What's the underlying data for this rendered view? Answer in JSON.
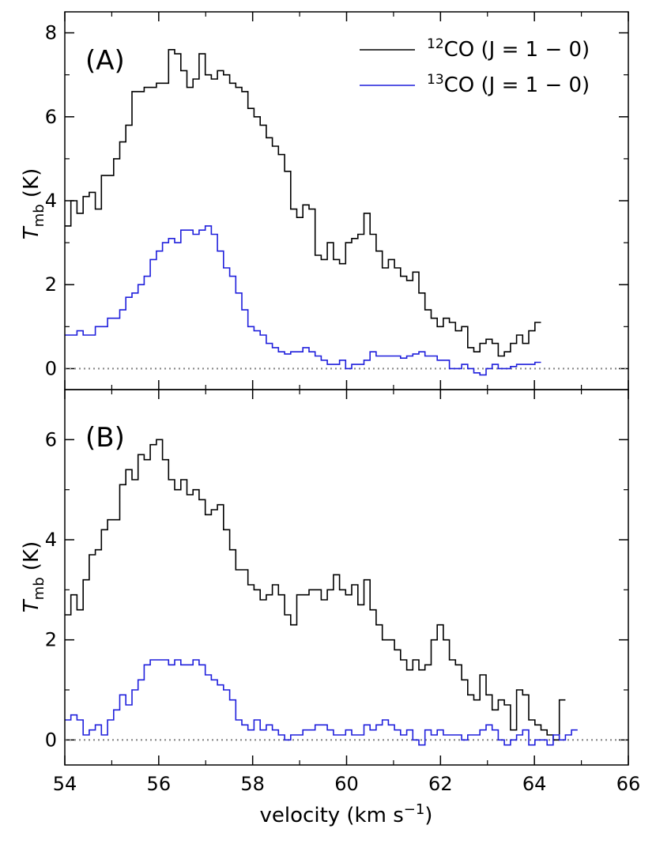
{
  "chart_data": [
    {
      "type": "line",
      "panel_label": "(A)",
      "ylabel": "Tmb (K)",
      "ylabel_main": "T",
      "ylabel_sub": "mb",
      "ylabel_unit": " (K)",
      "xlim": [
        54,
        66
      ],
      "ylim": [
        -0.5,
        8.5
      ],
      "yticks": [
        0,
        2,
        4,
        6,
        8
      ],
      "minor_yticks": [
        1,
        3,
        5,
        7
      ],
      "zero_line": true,
      "legend": {
        "placement": "top-right",
        "entries": [
          {
            "sup": "12",
            "text": "CO (J = 1 − 0)",
            "color": "#000000"
          },
          {
            "sup": "13",
            "text": "CO (J = 1 − 0)",
            "color": "#1f1fdc"
          }
        ]
      },
      "step": 0.13,
      "series": [
        {
          "color": "#000000",
          "values": [
            3.4,
            4.0,
            3.7,
            4.1,
            4.2,
            3.8,
            4.6,
            4.6,
            5.0,
            5.4,
            5.8,
            6.6,
            6.6,
            6.7,
            6.7,
            6.8,
            6.8,
            7.6,
            7.5,
            7.1,
            6.7,
            6.9,
            7.5,
            7.0,
            6.9,
            7.1,
            7.0,
            6.8,
            6.7,
            6.6,
            6.2,
            6.0,
            5.8,
            5.5,
            5.3,
            5.1,
            4.7,
            3.8,
            3.6,
            3.9,
            3.8,
            2.7,
            2.6,
            3.0,
            2.6,
            2.5,
            3.0,
            3.1,
            3.2,
            3.7,
            3.2,
            2.8,
            2.4,
            2.6,
            2.4,
            2.2,
            2.1,
            2.3,
            1.8,
            1.4,
            1.2,
            1.0,
            1.2,
            1.1,
            0.9,
            1.0,
            0.5,
            0.4,
            0.6,
            0.7,
            0.6,
            0.3,
            0.4,
            0.6,
            0.8,
            0.6,
            0.9,
            1.1
          ]
        },
        {
          "color": "#1f1fdc",
          "values": [
            0.8,
            0.8,
            0.9,
            0.8,
            0.8,
            1.0,
            1.0,
            1.2,
            1.2,
            1.4,
            1.7,
            1.8,
            2.0,
            2.2,
            2.6,
            2.8,
            3.0,
            3.1,
            3.0,
            3.3,
            3.3,
            3.2,
            3.3,
            3.4,
            3.2,
            2.8,
            2.4,
            2.2,
            1.8,
            1.4,
            1.0,
            0.9,
            0.8,
            0.6,
            0.5,
            0.4,
            0.35,
            0.4,
            0.4,
            0.5,
            0.4,
            0.3,
            0.2,
            0.1,
            0.1,
            0.2,
            0.0,
            0.1,
            0.1,
            0.2,
            0.4,
            0.3,
            0.3,
            0.3,
            0.3,
            0.25,
            0.3,
            0.35,
            0.4,
            0.3,
            0.3,
            0.2,
            0.2,
            0.0,
            0.0,
            0.1,
            0.0,
            -0.1,
            -0.15,
            0.0,
            0.1,
            0.0,
            0.0,
            0.05,
            0.1,
            0.1,
            0.1,
            0.15
          ]
        }
      ]
    },
    {
      "type": "line",
      "panel_label": "(B)",
      "ylabel": "Tmb (K)",
      "ylabel_main": "T",
      "ylabel_sub": "mb",
      "ylabel_unit": " (K)",
      "xlim": [
        54,
        66
      ],
      "xlabel": "velocity (km s−1)",
      "xlabel_main": "velocity (km s",
      "xlabel_sup": "−1",
      "xlabel_end": ")",
      "ylim": [
        -0.5,
        7.0
      ],
      "yticks": [
        0,
        2,
        4,
        6
      ],
      "minor_yticks": [
        1,
        3,
        5
      ],
      "xticks": [
        "54",
        "56",
        "58",
        "60",
        "62",
        "64",
        "66"
      ],
      "xtick_values": [
        54,
        56,
        58,
        60,
        62,
        64,
        66
      ],
      "zero_line": true,
      "step": 0.13,
      "series": [
        {
          "color": "#000000",
          "values": [
            2.5,
            2.9,
            2.6,
            3.2,
            3.7,
            3.8,
            4.2,
            4.4,
            4.4,
            5.1,
            5.4,
            5.2,
            5.7,
            5.6,
            5.9,
            6.0,
            5.6,
            5.2,
            5.0,
            5.2,
            4.9,
            5.0,
            4.8,
            4.5,
            4.6,
            4.7,
            4.2,
            3.8,
            3.4,
            3.4,
            3.1,
            3.0,
            2.8,
            2.9,
            3.1,
            2.9,
            2.5,
            2.3,
            2.9,
            2.9,
            3.0,
            3.0,
            2.8,
            3.0,
            3.3,
            3.0,
            2.9,
            3.1,
            2.7,
            3.2,
            2.6,
            2.3,
            2.0,
            2.0,
            1.8,
            1.6,
            1.4,
            1.6,
            1.4,
            1.5,
            2.0,
            2.3,
            2.0,
            1.6,
            1.5,
            1.2,
            0.9,
            0.8,
            1.3,
            0.9,
            0.6,
            0.8,
            0.7,
            0.2,
            1.0,
            0.9,
            0.4,
            0.3,
            0.2,
            0.1,
            0.0,
            0.8
          ]
        },
        {
          "color": "#1f1fdc",
          "values": [
            0.4,
            0.5,
            0.4,
            0.1,
            0.2,
            0.3,
            0.1,
            0.4,
            0.6,
            0.9,
            0.7,
            1.0,
            1.2,
            1.5,
            1.6,
            1.6,
            1.6,
            1.5,
            1.6,
            1.5,
            1.5,
            1.6,
            1.5,
            1.3,
            1.2,
            1.1,
            1.0,
            0.8,
            0.4,
            0.3,
            0.2,
            0.4,
            0.2,
            0.3,
            0.2,
            0.1,
            0.0,
            0.1,
            0.1,
            0.2,
            0.2,
            0.3,
            0.3,
            0.2,
            0.1,
            0.1,
            0.2,
            0.1,
            0.1,
            0.3,
            0.2,
            0.3,
            0.4,
            0.3,
            0.2,
            0.1,
            0.2,
            0.0,
            -0.1,
            0.2,
            0.1,
            0.2,
            0.1,
            0.1,
            0.1,
            0.0,
            0.1,
            0.1,
            0.2,
            0.3,
            0.2,
            0.0,
            -0.1,
            0.0,
            0.1,
            0.2,
            -0.1,
            0.0,
            0.0,
            -0.1,
            0.1,
            0.0,
            0.1,
            0.2
          ]
        }
      ]
    }
  ]
}
